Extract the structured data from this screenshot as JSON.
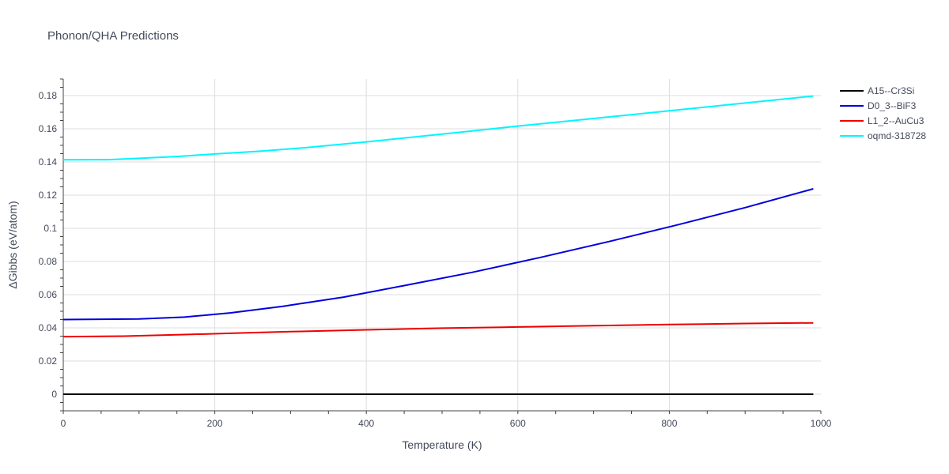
{
  "chart_data": {
    "type": "line",
    "title": "Phonon/QHA Predictions",
    "xlabel": "Temperature (K)",
    "ylabel": "ΔGibbs (eV/atom)",
    "xlim": [
      0,
      1000
    ],
    "ylim": [
      -0.01,
      0.19
    ],
    "xticks": [
      0,
      200,
      400,
      600,
      800,
      1000
    ],
    "xtick_labels": [
      "0",
      "200",
      "400",
      "600",
      "800",
      "1000"
    ],
    "yticks": [
      0,
      0.02,
      0.04,
      0.06,
      0.08,
      0.1,
      0.12,
      0.14,
      0.16,
      0.18
    ],
    "ytick_labels": [
      "0",
      "0.02",
      "0.04",
      "0.06",
      "0.08",
      "0.1",
      "0.12",
      "0.14",
      "0.16",
      "0.18"
    ],
    "grid": true,
    "legend_position": "top-right",
    "series": [
      {
        "name": "A15--Cr3Si",
        "color": "#000000",
        "x": [
          0,
          100,
          200,
          300,
          400,
          500,
          600,
          700,
          800,
          900,
          990
        ],
        "y": [
          0,
          0,
          0,
          0,
          0,
          0,
          0,
          0,
          0,
          0,
          0
        ]
      },
      {
        "name": "D0_3--BiF3",
        "color": "#0000dd",
        "x": [
          0,
          50,
          100,
          160,
          220,
          290,
          370,
          450,
          540,
          630,
          720,
          810,
          900,
          990
        ],
        "y": [
          0.045,
          0.0452,
          0.0454,
          0.0465,
          0.049,
          0.053,
          0.0585,
          0.0655,
          0.0735,
          0.0825,
          0.092,
          0.102,
          0.1125,
          0.1238
        ]
      },
      {
        "name": "L1_2--AuCu3",
        "color": "#ee0000",
        "x": [
          0,
          80,
          150,
          220,
          300,
          400,
          500,
          600,
          700,
          800,
          900,
          990
        ],
        "y": [
          0.0347,
          0.035,
          0.0358,
          0.0367,
          0.0377,
          0.0388,
          0.0398,
          0.0405,
          0.0413,
          0.042,
          0.0426,
          0.043
        ]
      },
      {
        "name": "oqmd-318728",
        "color": "#00f5ff",
        "x": [
          0,
          60,
          100,
          150,
          200,
          260,
          320,
          400,
          500,
          600,
          700,
          800,
          900,
          990
        ],
        "y": [
          0.1413,
          0.1414,
          0.1422,
          0.1433,
          0.1448,
          0.1465,
          0.1486,
          0.1521,
          0.1568,
          0.1616,
          0.1662,
          0.1708,
          0.1755,
          0.1797
        ]
      }
    ]
  }
}
